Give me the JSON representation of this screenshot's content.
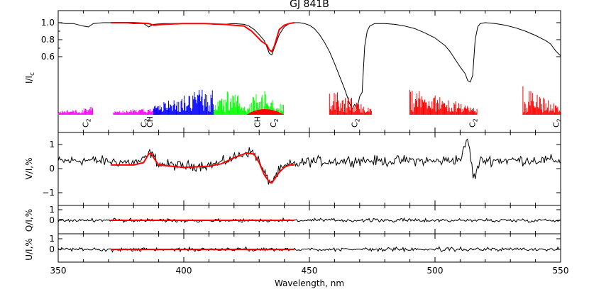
{
  "chart_data": [
    {
      "type": "line",
      "panel": "intensity",
      "title": "GJ 841B",
      "ylabel": "I/I_c",
      "ytick_labels": [
        "1.0",
        "0.8",
        "0.6"
      ],
      "yticks": [
        1.0,
        0.8,
        0.6
      ],
      "xlim": [
        350,
        550
      ],
      "series": [
        {
          "style": "observed",
          "color": "#000000",
          "x": [
            350,
            353,
            356,
            360,
            362,
            364,
            368,
            372,
            376,
            380,
            384,
            386,
            388,
            392,
            396,
            400,
            404,
            408,
            412,
            416,
            420,
            424,
            426,
            428,
            430,
            432,
            433,
            434,
            435,
            436,
            438,
            440,
            442,
            444,
            446,
            448,
            450,
            452,
            454,
            456,
            458,
            460,
            462,
            464,
            466,
            467,
            468,
            469,
            470,
            471,
            472,
            473,
            474,
            476,
            480,
            484,
            488,
            492,
            496,
            500,
            504,
            506,
            508,
            510,
            512,
            513,
            514,
            515,
            516,
            517,
            518,
            520,
            524,
            528,
            532,
            536,
            540,
            544,
            546,
            548,
            550
          ],
          "y": [
            1.0,
            0.99,
            0.99,
            0.96,
            0.95,
            0.99,
            1.0,
            1.0,
            1.0,
            0.99,
            0.99,
            0.95,
            0.98,
            0.99,
            0.99,
            0.99,
            0.99,
            0.99,
            0.98,
            0.98,
            0.99,
            0.98,
            0.96,
            0.92,
            0.86,
            0.79,
            0.72,
            0.64,
            0.62,
            0.7,
            0.86,
            0.95,
            0.99,
            1.0,
            1.0,
            0.99,
            0.97,
            0.93,
            0.86,
            0.77,
            0.66,
            0.52,
            0.37,
            0.22,
            0.05,
            -0.02,
            0.04,
            -0.01,
            0.13,
            0.18,
            0.72,
            0.9,
            0.96,
            0.99,
            0.99,
            0.98,
            0.96,
            0.93,
            0.88,
            0.82,
            0.73,
            0.66,
            0.57,
            0.48,
            0.4,
            0.32,
            0.3,
            0.38,
            0.8,
            0.95,
            0.99,
            1.0,
            0.99,
            0.97,
            0.94,
            0.9,
            0.85,
            0.79,
            0.75,
            0.67,
            0.61
          ]
        },
        {
          "style": "model",
          "color": "#ff0000",
          "x": [
            371,
            380,
            386,
            388,
            392,
            400,
            408,
            416,
            420,
            424,
            427,
            429,
            431,
            432,
            433,
            434,
            435,
            436,
            437,
            438,
            440,
            442,
            444
          ],
          "y": [
            1.0,
            1.0,
            0.99,
            0.97,
            0.98,
            0.99,
            0.99,
            0.98,
            0.97,
            0.96,
            0.9,
            0.84,
            0.78,
            0.76,
            0.74,
            0.68,
            0.66,
            0.72,
            0.82,
            0.92,
            0.97,
            0.99,
            1.0
          ]
        }
      ]
    },
    {
      "type": "bar",
      "panel": "molecular-lines",
      "annotations": [
        {
          "text": "C2",
          "x": 362
        },
        {
          "text": "C2",
          "x": 385.2
        },
        {
          "text": "CH",
          "x": 387.5
        },
        {
          "text": "CH",
          "x": 430.4
        },
        {
          "text": "C2",
          "x": 436.7
        },
        {
          "text": "C2",
          "x": 469
        },
        {
          "text": "C2",
          "x": 516
        },
        {
          "text": "C2",
          "x": 563
        }
      ],
      "bands": [
        {
          "color": "#ff00ff",
          "x_start": 350,
          "x_end": 364
        },
        {
          "color": "#ff00ff",
          "x_start": 372,
          "x_end": 391
        },
        {
          "color": "#0000ff",
          "x_start": 388,
          "x_end": 412
        },
        {
          "color": "#00ff00",
          "x_start": 412,
          "x_end": 440
        },
        {
          "color": "#ff0000",
          "x_start": 458,
          "x_end": 475
        },
        {
          "color": "#ff0000",
          "x_start": 490,
          "x_end": 517
        },
        {
          "color": "#ff0000",
          "x_start": 535,
          "x_end": 552
        }
      ]
    },
    {
      "type": "line",
      "panel": "stokes-v",
      "ylabel": "V/I,%",
      "ytick_labels": [
        "1",
        "0",
        "−1"
      ],
      "yticks": [
        1,
        0,
        -1
      ],
      "ylim": [
        -1.5,
        1.5
      ],
      "series": [
        {
          "style": "observed-noise",
          "color": "#000000",
          "noise": 0.15,
          "x": [
            350,
            360,
            370,
            380,
            384,
            386,
            387,
            388,
            390,
            395,
            400,
            410,
            415,
            420,
            425,
            428,
            430,
            432,
            434,
            435,
            436,
            438,
            440,
            442,
            444,
            446,
            450,
            460,
            470,
            480,
            490,
            500,
            505,
            510,
            511,
            512,
            513,
            514,
            515,
            516,
            517,
            518,
            520,
            530,
            540,
            550
          ],
          "y": [
            0.3,
            0.35,
            0.3,
            0.25,
            0.35,
            0.6,
            0.65,
            0.5,
            0.2,
            0.15,
            0.1,
            0.15,
            0.25,
            0.45,
            0.7,
            0.65,
            0.3,
            -0.2,
            -0.5,
            -0.55,
            -0.4,
            -0.1,
            0.05,
            0.15,
            0.2,
            0.2,
            0.3,
            0.3,
            0.35,
            0.3,
            0.35,
            0.3,
            0.35,
            0.4,
            0.6,
            0.9,
            1.3,
            0.6,
            -0.2,
            -0.4,
            0.1,
            0.3,
            0.35,
            0.35,
            0.35,
            0.35
          ]
        },
        {
          "style": "model",
          "color": "#ff0000",
          "x": [
            371,
            380,
            384,
            386,
            387,
            388,
            390,
            395,
            400,
            410,
            415,
            420,
            425,
            428,
            430,
            432,
            434,
            435,
            436,
            438,
            440,
            442,
            444
          ],
          "y": [
            0.15,
            0.15,
            0.25,
            0.6,
            0.65,
            0.45,
            0.15,
            0.1,
            0.05,
            0.1,
            0.2,
            0.45,
            0.65,
            0.6,
            0.25,
            -0.25,
            -0.55,
            -0.6,
            -0.45,
            -0.15,
            0.05,
            0.15,
            0.15
          ]
        }
      ]
    },
    {
      "type": "line",
      "panel": "stokes-q",
      "ylabel": "Q/I,%",
      "ytick_labels": [
        "1",
        "0"
      ],
      "yticks": [
        1,
        0
      ],
      "ylim": [
        -1.2,
        1.2
      ],
      "series": [
        {
          "style": "observed-noise",
          "color": "#000000",
          "noise": 0.12,
          "x": [
            350,
            550
          ],
          "y": [
            0,
            0
          ]
        },
        {
          "style": "model",
          "color": "#ff0000",
          "x": [
            371,
            444
          ],
          "y": [
            0,
            0
          ]
        }
      ]
    },
    {
      "type": "line",
      "panel": "stokes-u",
      "ylabel": "U/I,%",
      "ytick_labels": [
        "1",
        "0"
      ],
      "yticks": [
        1,
        0
      ],
      "ylim": [
        -1.2,
        1.2
      ],
      "xlabel": "Wavelength, nm",
      "xticks": [
        350,
        400,
        450,
        500,
        550
      ],
      "xtick_labels": [
        "350",
        "400",
        "450",
        "500",
        "550"
      ],
      "series": [
        {
          "style": "observed-noise",
          "color": "#000000",
          "noise": 0.12,
          "x": [
            350,
            550
          ],
          "y": [
            0,
            0
          ]
        },
        {
          "style": "model",
          "color": "#ff0000",
          "x": [
            371,
            444
          ],
          "y": [
            0,
            0
          ]
        }
      ]
    }
  ]
}
